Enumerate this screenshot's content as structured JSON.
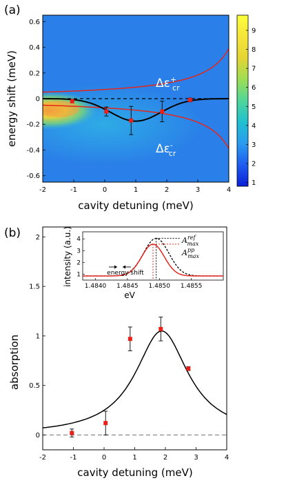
{
  "chart_data": [
    {
      "panel": "(a)",
      "type": "heatmap",
      "xlabel": "cavity detuning (meV)",
      "ylabel": "energy shift (meV)",
      "xlim": [
        -2,
        4
      ],
      "ylim": [
        -0.65,
        0.65
      ],
      "xticks": [
        "-2",
        "-1",
        "0",
        "1",
        "2",
        "3",
        "4"
      ],
      "yticks": [
        "-0.6",
        "-0.4",
        "-0.2",
        "0",
        "0.2",
        "0.4",
        "0.6"
      ],
      "colorbar": {
        "ticks": [
          "1",
          "2",
          "3",
          "4",
          "5",
          "6",
          "7",
          "8",
          "9"
        ],
        "range": [
          0.8,
          9.8
        ],
        "colors": [
          "#0a1fd6",
          "#1e5cf0",
          "#2a9bf0",
          "#20c0d0",
          "#4fd69a",
          "#9ede54",
          "#e4d433",
          "#f6e53a",
          "#fbff3c"
        ]
      },
      "annotations": [
        {
          "text": "Δε",
          "sup": "+",
          "sub": "cr"
        },
        {
          "text": "Δε",
          "sup": "-",
          "sub": "cr"
        }
      ],
      "series": [
        {
          "style": "markers-errorbars",
          "color": "#e8221b",
          "x": [
            -1.05,
            0.05,
            0.85,
            1.85,
            2.75
          ],
          "y": [
            -0.02,
            -0.1,
            -0.17,
            -0.1,
            -0.01
          ],
          "err": [
            0.0,
            0.035,
            0.11,
            0.08,
            0.015
          ]
        }
      ]
    },
    {
      "panel": "(b)",
      "type": "scatter",
      "xlabel": "cavity detuning (meV)",
      "ylabel": "absorption",
      "xlim": [
        -2,
        4
      ],
      "ylim": [
        -0.15,
        2.1
      ],
      "xticks": [
        "-2",
        "-1",
        "0",
        "1",
        "2",
        "3",
        "4"
      ],
      "yticks": [
        "0",
        "0.5",
        "1",
        "1.5",
        "2"
      ],
      "series": [
        {
          "style": "markers-errorbars",
          "color": "#e8221b",
          "x": [
            -1.05,
            0.05,
            0.85,
            1.85,
            2.75
          ],
          "y": [
            0.02,
            0.12,
            0.97,
            1.07,
            0.67
          ],
          "err": [
            0.04,
            0.12,
            0.12,
            0.12,
            0.02
          ]
        }
      ],
      "inset": {
        "xlabel": "eV",
        "ylabel": "intensity (a.u.)",
        "xlim": [
          1.4838,
          1.486
        ],
        "ylim": [
          0.5,
          4.6
        ],
        "xticks": [
          "1.4840",
          "1.4845",
          "1.4850",
          "1.4855"
        ],
        "yticks": [
          "1",
          "2",
          "3",
          "4"
        ],
        "legend": [
          {
            "label": "A",
            "sup": "ref",
            "sub": "max",
            "color": "#000000"
          },
          {
            "label": "A",
            "sup": "pp",
            "sub": "max",
            "color": "#e8221b"
          }
        ],
        "annotation": "energy shift"
      }
    }
  ]
}
